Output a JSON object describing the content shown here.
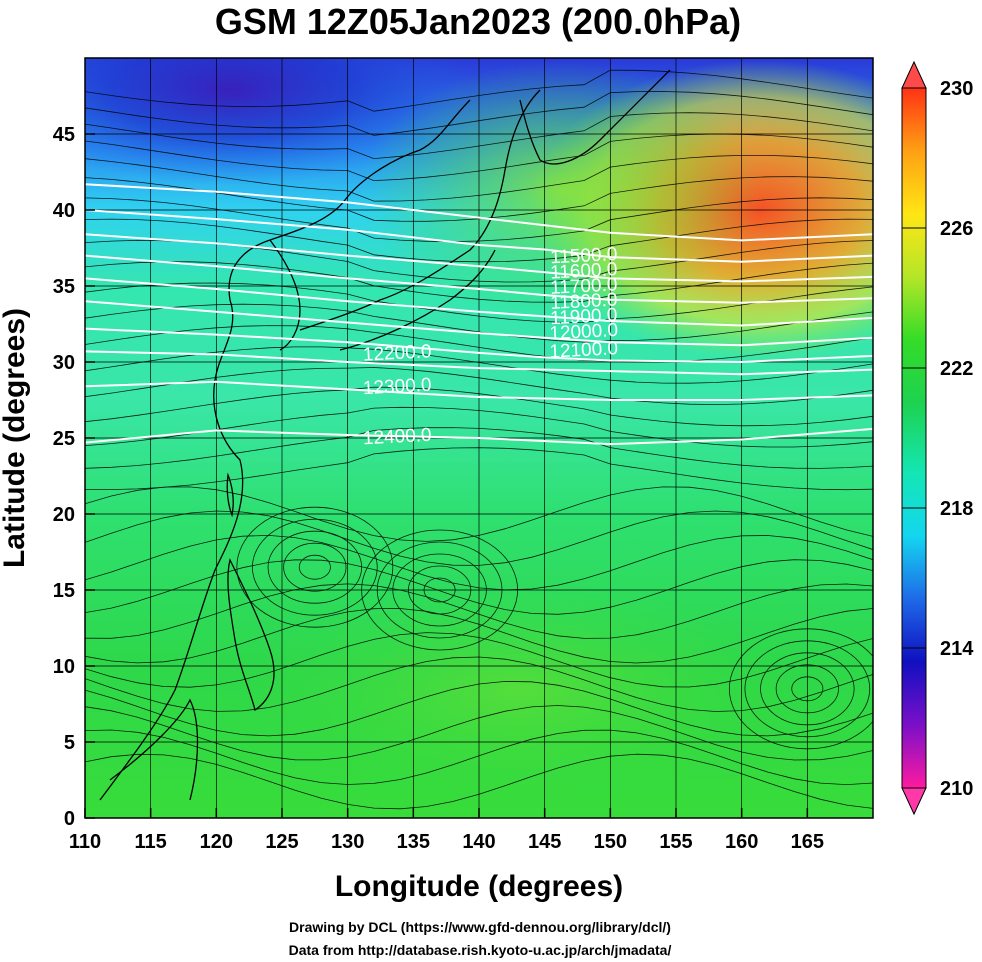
{
  "title": "GSM 12Z05Jan2023 (200.0hPa)",
  "xlabel": "Longitude (degrees)",
  "ylabel": "Latitude  (degrees)",
  "credits": [
    "Drawing by DCL (https://www.gfd-dennou.org/library/dcl/)",
    "Data from http://database.rish.kyoto-u.ac.jp/arch/jmadata/"
  ],
  "map": {
    "lon_range": [
      110,
      170
    ],
    "lat_range": [
      0,
      50
    ],
    "x_ticks": [
      "110",
      "115",
      "120",
      "125",
      "130",
      "135",
      "140",
      "145",
      "150",
      "155",
      "160",
      "165"
    ],
    "y_ticks": [
      "0",
      "5",
      "10",
      "15",
      "20",
      "25",
      "30",
      "35",
      "40",
      "45"
    ],
    "grid": true
  },
  "colorbar": {
    "range": [
      210,
      230
    ],
    "labels": [
      "230",
      "226",
      "222",
      "218",
      "214",
      "210"
    ],
    "colors": [
      "#ff1aa0",
      "#7a10c8",
      "#1010c0",
      "#1e6ae8",
      "#14d6f0",
      "#14e6b4",
      "#1ed250",
      "#34dc28",
      "#b4e628",
      "#ffe614",
      "#ffa014",
      "#ff3214"
    ]
  },
  "contours": {
    "lines": [
      {
        "value": 11500,
        "label": "11500.0",
        "pts": [
          [
            110,
            41.7
          ],
          [
            120,
            41.2
          ],
          [
            130,
            40.5
          ],
          [
            140,
            39.5
          ],
          [
            145,
            39.0
          ],
          [
            150,
            38.5
          ],
          [
            160,
            38.0
          ],
          [
            170,
            38.4
          ]
        ]
      },
      {
        "value": 11600,
        "label": "11600.0",
        "pts": [
          [
            110,
            40.0
          ],
          [
            120,
            39.4
          ],
          [
            130,
            38.7
          ],
          [
            140,
            37.7
          ],
          [
            145,
            37.4
          ],
          [
            150,
            36.9
          ],
          [
            160,
            36.6
          ],
          [
            170,
            37.0
          ]
        ]
      },
      {
        "value": 11700,
        "label": "11700.0",
        "pts": [
          [
            110,
            38.4
          ],
          [
            120,
            37.8
          ],
          [
            130,
            37.0
          ],
          [
            140,
            36.3
          ],
          [
            145,
            35.9
          ],
          [
            150,
            35.5
          ],
          [
            160,
            35.3
          ],
          [
            170,
            35.6
          ]
        ]
      },
      {
        "value": 11800,
        "label": "11800.0",
        "pts": [
          [
            110,
            37.0
          ],
          [
            120,
            36.3
          ],
          [
            130,
            35.5
          ],
          [
            140,
            34.8
          ],
          [
            145,
            34.4
          ],
          [
            150,
            34.1
          ],
          [
            160,
            33.9
          ],
          [
            170,
            34.2
          ]
        ]
      },
      {
        "value": 11900,
        "label": "11900.0",
        "pts": [
          [
            110,
            35.5
          ],
          [
            120,
            34.8
          ],
          [
            130,
            34.0
          ],
          [
            140,
            33.3
          ],
          [
            145,
            33.0
          ],
          [
            150,
            32.7
          ],
          [
            160,
            32.4
          ],
          [
            170,
            32.9
          ]
        ]
      },
      {
        "value": 12000,
        "label": "12000.0",
        "pts": [
          [
            110,
            34.0
          ],
          [
            120,
            33.3
          ],
          [
            130,
            32.6
          ],
          [
            140,
            31.9
          ],
          [
            145,
            31.6
          ],
          [
            150,
            31.3
          ],
          [
            160,
            31.1
          ],
          [
            170,
            31.6
          ]
        ]
      },
      {
        "value": 12100,
        "label": "12100.0",
        "pts": [
          [
            110,
            32.2
          ],
          [
            120,
            31.8
          ],
          [
            130,
            31.3
          ],
          [
            140,
            30.6
          ],
          [
            145,
            30.3
          ],
          [
            150,
            30.1
          ],
          [
            160,
            30.0
          ],
          [
            170,
            30.4
          ]
        ]
      },
      {
        "value": 12200,
        "label": "12200.0",
        "pts": [
          [
            110,
            30.7
          ],
          [
            120,
            30.5
          ],
          [
            130,
            30.0
          ],
          [
            140,
            29.6
          ],
          [
            150,
            29.4
          ],
          [
            160,
            29.2
          ],
          [
            170,
            29.5
          ]
        ]
      },
      {
        "value": 12300,
        "label": "12300.0",
        "pts": [
          [
            110,
            28.4
          ],
          [
            120,
            28.7
          ],
          [
            130,
            28.2
          ],
          [
            140,
            27.7
          ],
          [
            150,
            27.5
          ],
          [
            160,
            27.5
          ],
          [
            170,
            27.8
          ]
        ]
      },
      {
        "value": 12400,
        "label": "12400.0",
        "pts": [
          [
            110,
            24.7
          ],
          [
            120,
            25.5
          ],
          [
            130,
            25.2
          ],
          [
            140,
            25.0
          ],
          [
            150,
            24.6
          ],
          [
            160,
            24.9
          ],
          [
            170,
            25.6
          ]
        ]
      }
    ],
    "label_positions": [
      {
        "lon": 148.0,
        "lat": 36.6
      },
      {
        "lon": 148.0,
        "lat": 35.6
      },
      {
        "lon": 148.0,
        "lat": 34.6
      },
      {
        "lon": 148.0,
        "lat": 33.6
      },
      {
        "lon": 148.0,
        "lat": 32.6
      },
      {
        "lon": 148.0,
        "lat": 31.6
      },
      {
        "lon": 148.0,
        "lat": 30.4
      },
      {
        "lon": 133.8,
        "lat": 30.2
      },
      {
        "lon": 133.8,
        "lat": 28.0
      },
      {
        "lon": 133.8,
        "lat": 24.7
      }
    ]
  }
}
